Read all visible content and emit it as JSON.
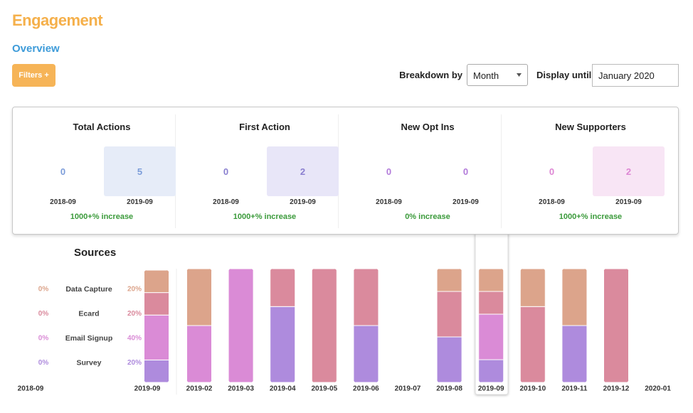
{
  "header": {
    "title": "Engagement",
    "subtitle": "Overview"
  },
  "controls": {
    "filters_button": "Filters +",
    "breakdown_label": "Breakdown by",
    "breakdown_value": "Month",
    "display_until_label": "Display until",
    "display_until_value": "January 2020"
  },
  "stats": [
    {
      "title": "Total Actions",
      "periods": [
        {
          "label": "2018-09",
          "value": 0
        },
        {
          "label": "2019-09",
          "value": 5
        }
      ],
      "change": "1000+% increase"
    },
    {
      "title": "First Action",
      "periods": [
        {
          "label": "2018-09",
          "value": 0
        },
        {
          "label": "2019-09",
          "value": 2
        }
      ],
      "change": "1000+% increase"
    },
    {
      "title": "New Opt Ins",
      "periods": [
        {
          "label": "2018-09",
          "value": 0
        },
        {
          "label": "2019-09",
          "value": 0
        }
      ],
      "change": "0% increase"
    },
    {
      "title": "New Supporters",
      "periods": [
        {
          "label": "2018-09",
          "value": 0
        },
        {
          "label": "2019-09",
          "value": 2
        }
      ],
      "change": "1000+% increase"
    }
  ],
  "chart_data": [
    {
      "type": "bar",
      "stacked": true,
      "title": "Sources",
      "categories": [
        "2018-09",
        "2019-09"
      ],
      "ylim": [
        0,
        100
      ],
      "series": [
        {
          "name": "Data Capture",
          "color": "#dca48b",
          "values": [
            0,
            20
          ],
          "value_labels": [
            "0%",
            "20%"
          ]
        },
        {
          "name": "Ecard",
          "color": "#da8a9d",
          "values": [
            0,
            20
          ],
          "value_labels": [
            "0%",
            "20%"
          ]
        },
        {
          "name": "Email Signup",
          "color": "#da8bd6",
          "values": [
            0,
            40
          ],
          "value_labels": [
            "0%",
            "40%"
          ]
        },
        {
          "name": "Survey",
          "color": "#ae8bdd",
          "values": [
            0,
            20
          ],
          "value_labels": [
            "0%",
            "20%"
          ]
        }
      ]
    },
    {
      "type": "bar",
      "stacked": true,
      "categories": [
        "2019-02",
        "2019-03",
        "2019-04",
        "2019-05",
        "2019-06",
        "2019-07",
        "2019-08",
        "2019-09",
        "2019-10",
        "2019-11",
        "2019-12",
        "2020-01"
      ],
      "ylim": [
        0,
        100
      ],
      "series": [
        {
          "color": "#dca48b",
          "values": [
            50,
            0,
            0,
            0,
            0,
            0,
            20,
            20,
            33.3,
            50,
            0,
            0
          ]
        },
        {
          "color": "#da8a9d",
          "values": [
            0,
            0,
            33.3,
            100,
            50,
            0,
            40,
            20,
            66.7,
            0,
            100,
            0
          ]
        },
        {
          "color": "#da8bd6",
          "values": [
            50,
            100,
            0,
            0,
            0,
            0,
            0,
            40,
            0,
            0,
            0,
            0
          ]
        },
        {
          "color": "#ae8bdd",
          "values": [
            0,
            0,
            66.7,
            0,
            50,
            0,
            40,
            20,
            0,
            50,
            0,
            0
          ]
        }
      ]
    }
  ]
}
